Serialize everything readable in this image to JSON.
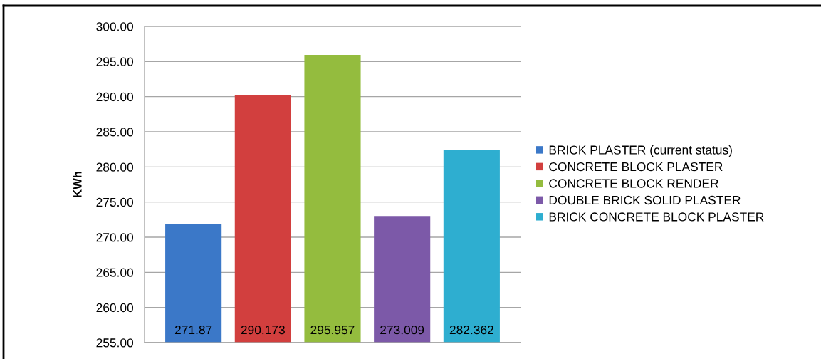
{
  "chart_data": {
    "type": "bar",
    "ylabel": "KWh",
    "categories": [
      null
    ],
    "series": [
      {
        "name": "BRICK PLASTER (current status)",
        "color": "#3b78c8",
        "values": [
          271.87
        ]
      },
      {
        "name": "CONCRETE BLOCK PLASTER",
        "color": "#d23f3e",
        "values": [
          290.173
        ]
      },
      {
        "name": "CONCRETE BLOCK RENDER",
        "color": "#94bc3e",
        "values": [
          295.957
        ]
      },
      {
        "name": "DOUBLE BRICK SOLID PLASTER",
        "color": "#7c59a8",
        "values": [
          273.009
        ]
      },
      {
        "name": "BRICK CONCRETE BLOCK PLASTER",
        "color": "#2eaed0",
        "values": [
          282.362
        ]
      }
    ],
    "ylim": [
      255,
      300
    ],
    "yticks": [
      {
        "value": 255,
        "label": "255.00"
      },
      {
        "value": 260,
        "label": "260.00"
      },
      {
        "value": 265,
        "label": "265.00"
      },
      {
        "value": 270,
        "label": "270.00"
      },
      {
        "value": 275,
        "label": "275.00"
      },
      {
        "value": 280,
        "label": "280.00"
      },
      {
        "value": 285,
        "label": "285.00"
      },
      {
        "value": 290,
        "label": "290.00"
      },
      {
        "value": 295,
        "label": "295.00"
      },
      {
        "value": 300,
        "label": "300.00"
      }
    ],
    "grid": "y",
    "legend": "right",
    "data_labels": true,
    "tick_labels": "y"
  }
}
